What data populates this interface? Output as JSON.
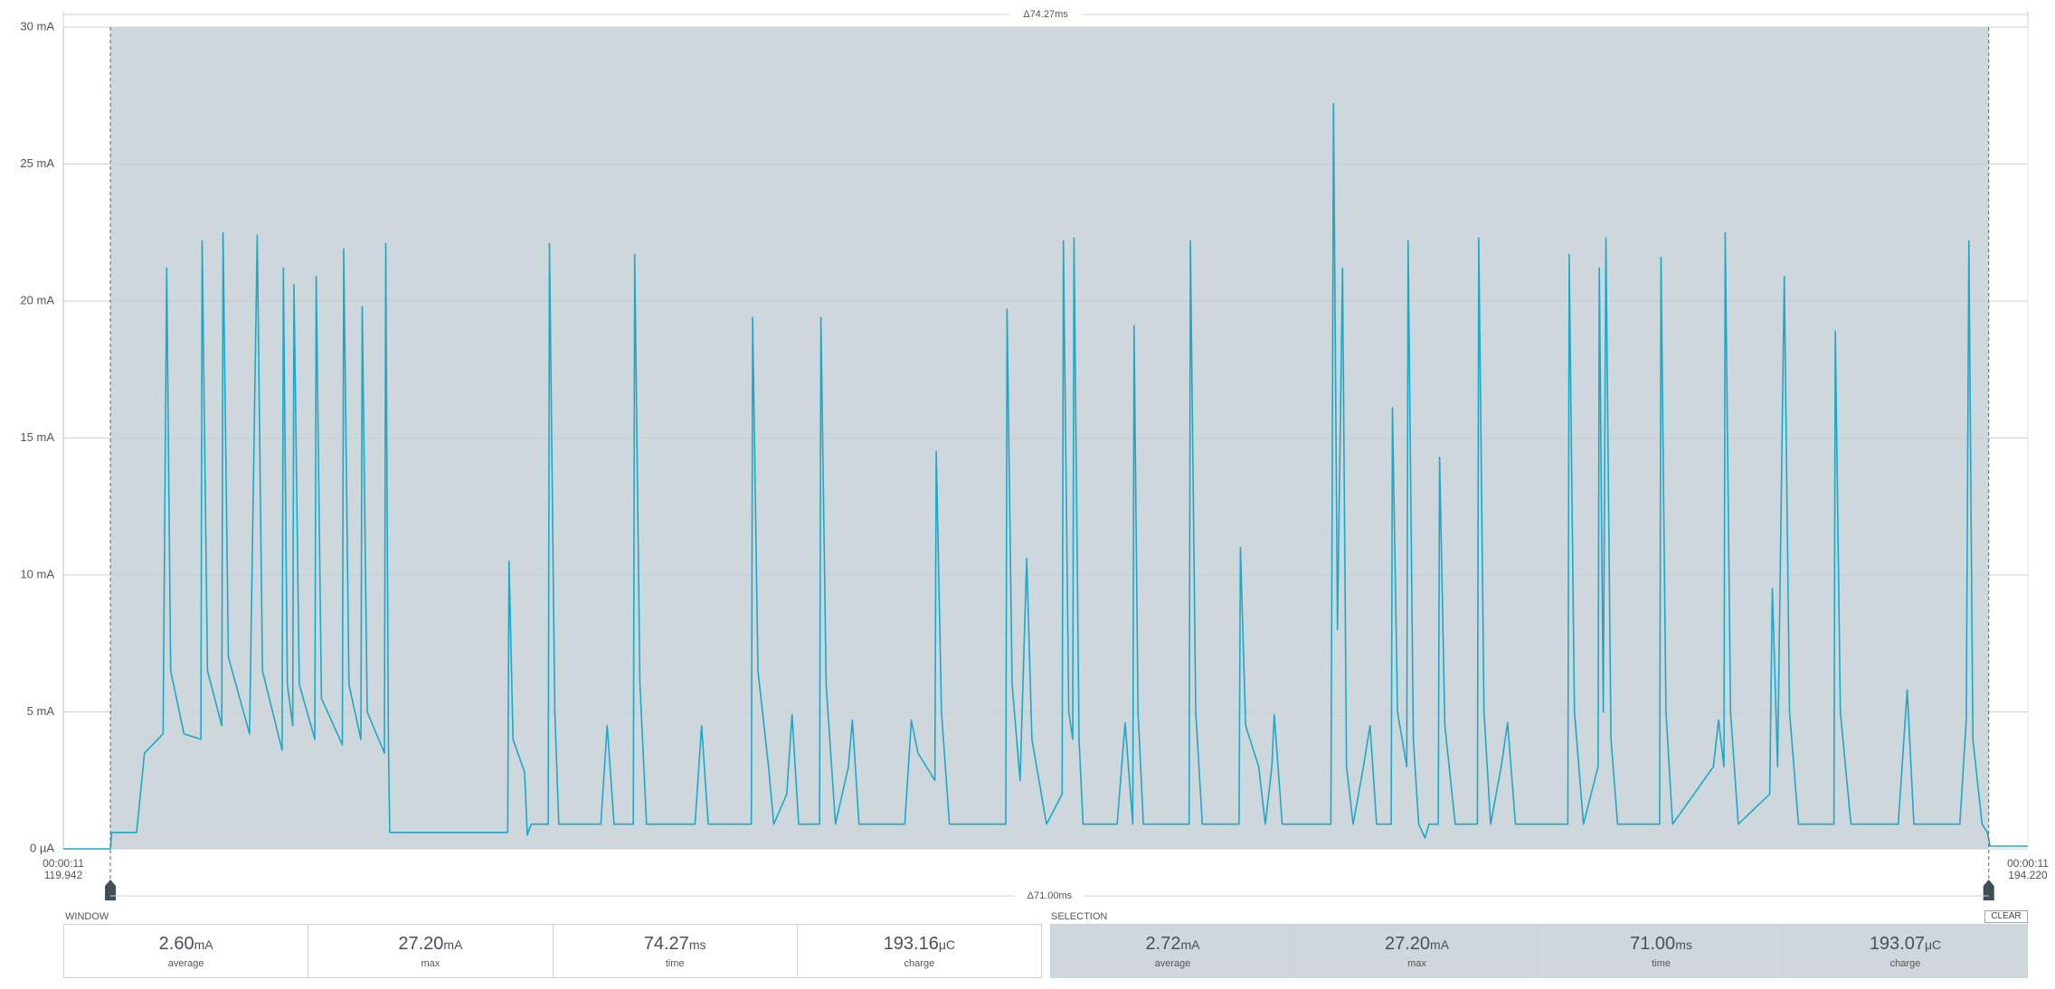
{
  "chart_data": {
    "type": "line",
    "color": "#1ea8c8",
    "selection_color": "#cdd7dc",
    "grid": true,
    "ylim": [
      0,
      30
    ],
    "yticks": [
      {
        "value": 0,
        "label": "0 µA"
      },
      {
        "value": 5,
        "label": "5 mA"
      },
      {
        "value": 10,
        "label": "10 mA"
      },
      {
        "value": 15,
        "label": "15 mA"
      },
      {
        "value": 20,
        "label": "20 mA"
      },
      {
        "value": 25,
        "label": "25 mA"
      },
      {
        "value": 30,
        "label": "30 mA"
      }
    ],
    "xlim": [
      0,
      74.27
    ],
    "window_delta": "Δ74.27ms",
    "selection_delta": "Δ71.00ms",
    "selection": [
      1.78,
      72.79
    ],
    "start_label": [
      "00:00:11",
      "119.942"
    ],
    "end_label": [
      "00:00:11",
      "194.220"
    ],
    "x": [
      0,
      1.78,
      1.83,
      2.77,
      3.07,
      3.77,
      3.91,
      4.06,
      4.56,
      5.2,
      5.25,
      5.45,
      5.99,
      6.04,
      6.24,
      7.04,
      7.33,
      7.53,
      8.27,
      8.32,
      8.47,
      8.67,
      8.72,
      8.92,
      9.51,
      9.56,
      9.76,
      10.55,
      10.6,
      10.8,
      11.25,
      11.3,
      11.49,
      12.14,
      12.19,
      12.29,
      12.34,
      16.8,
      16.85,
      17.0,
      17.44,
      17.54,
      17.69,
      18.33,
      18.38,
      18.58,
      18.73,
      20.32,
      20.56,
      20.82,
      21.55,
      21.6,
      21.8,
      22.05,
      23.88,
      24.13,
      24.38,
      26.01,
      26.06,
      26.26,
      26.66,
      26.86,
      27.35,
      27.55,
      27.8,
      28.59,
      28.64,
      28.84,
      29.19,
      29.68,
      29.83,
      30.08,
      31.81,
      32.06,
      32.31,
      32.95,
      33.0,
      33.2,
      33.5,
      35.63,
      35.68,
      35.87,
      36.17,
      36.42,
      36.62,
      37.17,
      37.76,
      37.81,
      38.01,
      38.16,
      38.21,
      38.4,
      38.55,
      39.84,
      40.14,
      40.43,
      40.48,
      40.63,
      40.83,
      42.56,
      42.61,
      42.81,
      43.06,
      44.45,
      44.5,
      44.7,
      45.19,
      45.44,
      45.69,
      45.78,
      46.08,
      47.92,
      47.97,
      48.02,
      48.17,
      48.36,
      48.51,
      48.76,
      49.15,
      49.4,
      49.65,
      50.2,
      50.25,
      50.44,
      50.79,
      50.84,
      51.04,
      51.24,
      51.48,
      51.63,
      51.98,
      52.03,
      52.23,
      52.62,
      53.46,
      53.51,
      53.71,
      53.96,
      54.36,
      54.6,
      54.9,
      56.88,
      56.93,
      57.13,
      57.47,
      58.02,
      58.07,
      58.22,
      58.32,
      58.51,
      58.76,
      60.35,
      60.4,
      60.59,
      60.84,
      62.38,
      62.58,
      62.78,
      62.83,
      63.03,
      63.32,
      64.51,
      64.61,
      64.81,
      65.06,
      65.26,
      65.6,
      66.94,
      66.99,
      67.18,
      67.58,
      69.37,
      69.71,
      69.96,
      71.7,
      71.94,
      72.04,
      72.19,
      72.54,
      72.74,
      72.84,
      74.27
    ],
    "values": [
      0,
      0,
      0.6,
      0.6,
      3.5,
      4.2,
      21.2,
      6.5,
      4.2,
      4,
      22.2,
      6.5,
      4.5,
      22.5,
      7,
      4.2,
      22.4,
      6.5,
      3.6,
      21.2,
      6,
      4.5,
      20.6,
      6,
      4,
      20.9,
      5.5,
      3.8,
      21.9,
      6,
      4,
      19.8,
      5,
      3.5,
      22.1,
      4,
      0.6,
      0.6,
      10.5,
      4,
      2.8,
      0.5,
      0.9,
      0.9,
      22.1,
      5,
      0.9,
      0.9,
      4.5,
      0.9,
      0.9,
      21.7,
      6,
      0.9,
      0.9,
      4.5,
      0.9,
      0.9,
      19.4,
      6.5,
      3,
      0.9,
      2,
      4.9,
      0.9,
      0.9,
      19.4,
      6,
      0.9,
      3,
      4.7,
      0.9,
      0.9,
      4.7,
      3.5,
      2.5,
      14.5,
      5,
      0.9,
      0.9,
      19.7,
      6,
      2.5,
      10.6,
      4,
      0.9,
      2,
      22.2,
      5,
      4,
      22.3,
      4,
      0.9,
      0.9,
      4.6,
      0.9,
      19.1,
      5,
      0.9,
      0.9,
      22.2,
      5,
      0.9,
      0.9,
      11,
      4.5,
      3,
      0.9,
      3,
      4.9,
      0.9,
      0.9,
      13,
      27.2,
      8,
      21.2,
      3,
      0.9,
      3,
      4.5,
      0.9,
      0.9,
      16.1,
      5,
      3,
      22.2,
      4,
      0.9,
      0.4,
      0.9,
      0.9,
      14.3,
      4.5,
      0.9,
      0.9,
      22.3,
      5,
      0.9,
      3,
      4.6,
      0.9,
      0.9,
      21.7,
      5,
      0.9,
      3,
      21.2,
      5,
      22.3,
      4,
      0.9,
      0.9,
      21.6,
      5,
      0.9,
      3,
      4.7,
      3,
      22.5,
      5,
      0.9,
      2,
      9.5,
      3,
      20.9,
      5,
      0.9,
      0.9,
      18.9,
      5,
      0.9,
      0.9,
      5.8,
      0.9,
      0.9,
      4.7,
      22.2,
      4,
      0.9,
      0.6,
      0.1,
      0.1
    ]
  },
  "window": {
    "title": "WINDOW",
    "stats": [
      {
        "value": "2.60",
        "unit": "mA",
        "label": "average"
      },
      {
        "value": "27.20",
        "unit": "mA",
        "label": "max"
      },
      {
        "value": "74.27",
        "unit": "ms",
        "label": "time"
      },
      {
        "value": "193.16",
        "unit": "μC",
        "label": "charge"
      }
    ]
  },
  "selection": {
    "title": "SELECTION",
    "button": "CLEAR",
    "stats": [
      {
        "value": "2.72",
        "unit": "mA",
        "label": "average"
      },
      {
        "value": "27.20",
        "unit": "mA",
        "label": "max"
      },
      {
        "value": "71.00",
        "unit": "ms",
        "label": "time"
      },
      {
        "value": "193.07",
        "unit": "μC",
        "label": "charge"
      }
    ]
  }
}
